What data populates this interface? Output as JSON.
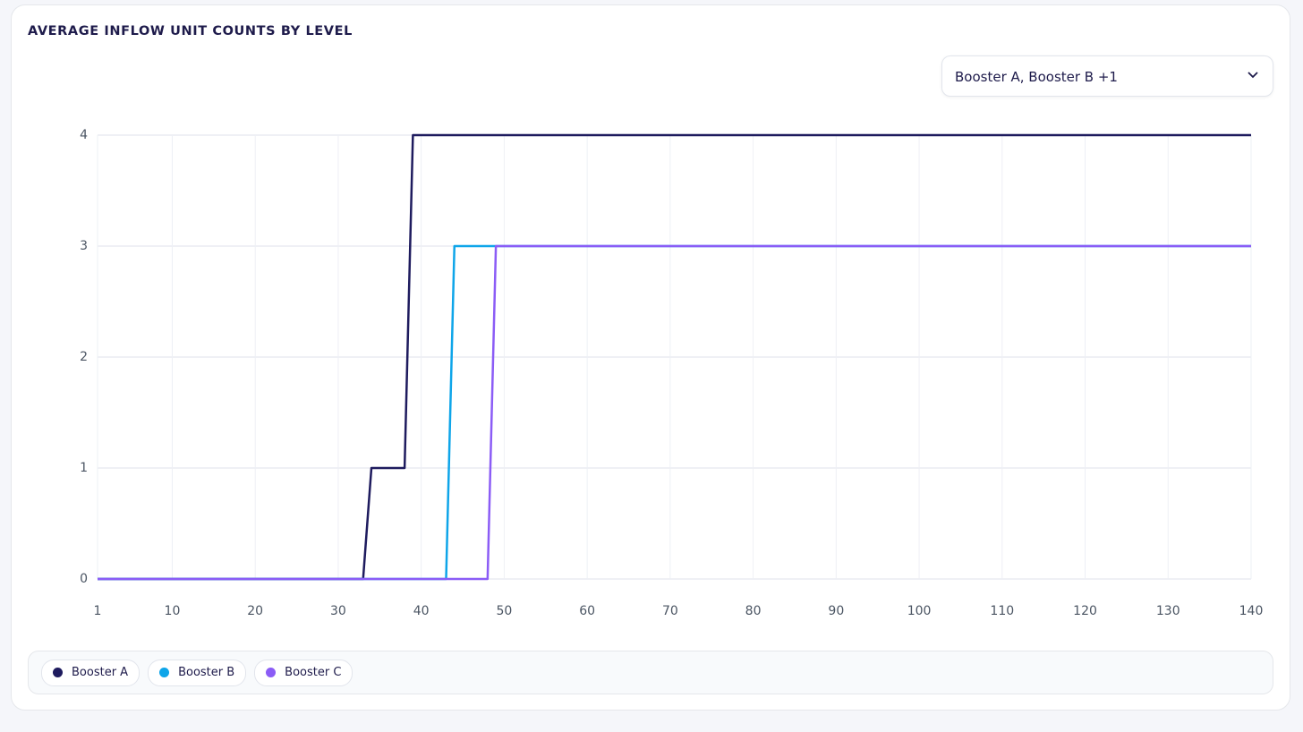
{
  "chart_data": {
    "type": "line",
    "title": "AVERAGE INFLOW UNIT COUNTS BY LEVEL",
    "selector": "Booster A, Booster B +1",
    "xlim": [
      1,
      140
    ],
    "xticks": [
      1,
      10,
      20,
      30,
      40,
      50,
      60,
      70,
      80,
      90,
      100,
      110,
      120,
      130,
      140
    ],
    "ylim": [
      0,
      4
    ],
    "yticks": [
      0,
      1,
      2,
      3,
      4
    ],
    "grid": true,
    "series": [
      {
        "name": "Booster A",
        "color": "#1e1b5e",
        "x": [
          1,
          33,
          34,
          38,
          39,
          140
        ],
        "values": [
          0,
          0,
          1,
          1,
          4,
          4
        ]
      },
      {
        "name": "Booster B",
        "color": "#0ea5e9",
        "x": [
          1,
          43,
          44,
          140
        ],
        "values": [
          0,
          0,
          3,
          3
        ]
      },
      {
        "name": "Booster C",
        "color": "#8b5cf6",
        "x": [
          1,
          48,
          49,
          140
        ],
        "values": [
          0,
          0,
          3,
          3
        ]
      }
    ]
  }
}
